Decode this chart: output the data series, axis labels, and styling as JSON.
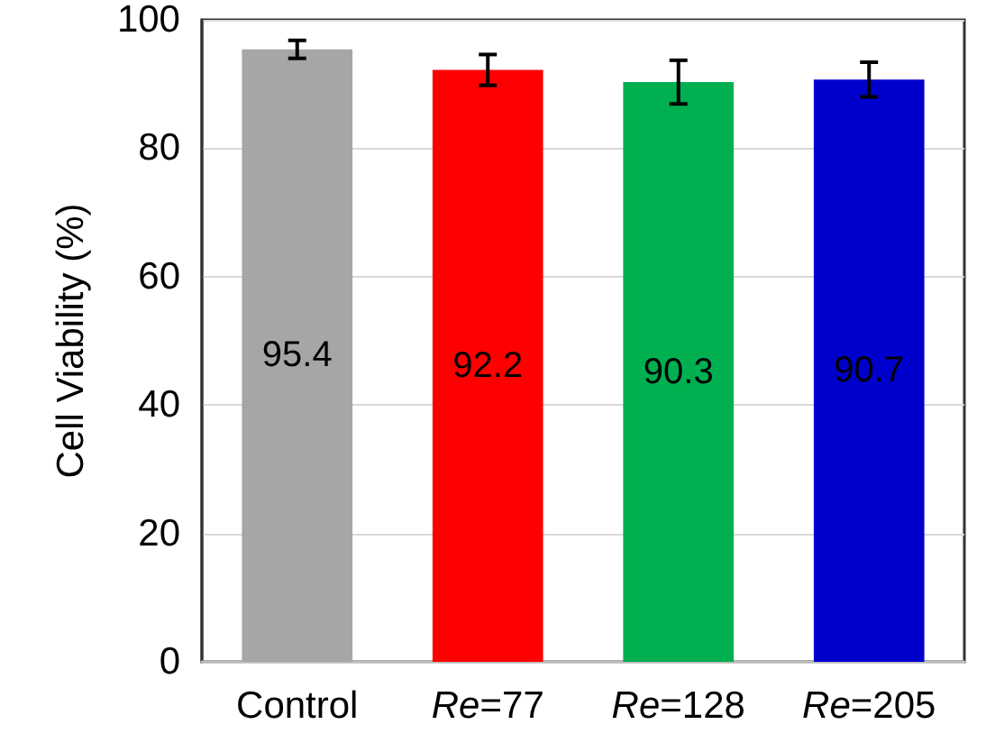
{
  "chart_data": {
    "type": "bar",
    "ylabel": "Cell Viability (%)",
    "categories": [
      "Control",
      "Re=77",
      "Re=128",
      "Re=205"
    ],
    "values": [
      95.4,
      92.2,
      90.3,
      90.7
    ],
    "colors": [
      "#a6a6a6",
      "#ff0000",
      "#00b050",
      "#0000cc"
    ],
    "errors": [
      1.4,
      2.4,
      3.4,
      2.7
    ],
    "ylim": [
      0,
      100
    ],
    "yticks": [
      0,
      20,
      40,
      60,
      80,
      100
    ],
    "grid": "y",
    "data_labels": true
  }
}
